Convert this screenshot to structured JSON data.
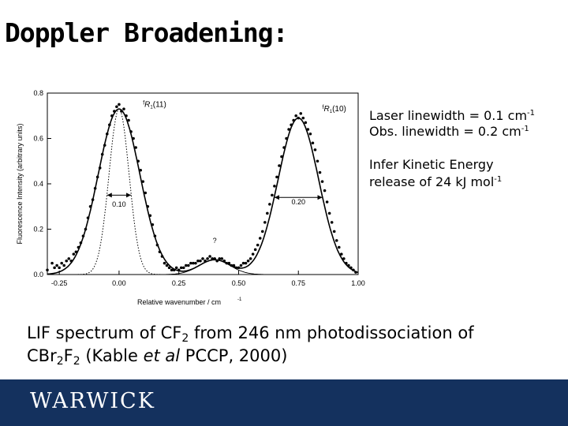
{
  "slide": {
    "title": "Doppler Broadening:",
    "notes": {
      "laser_prefix": "Laser linewidth = 0.1 cm",
      "laser_exp": "-1",
      "obs_prefix": "Obs. linewidth = 0.2 cm",
      "obs_exp": "-1",
      "infer_line1": "Infer Kinetic Energy",
      "infer_line2_prefix": "release of 24 kJ mol",
      "infer_exp": "-1"
    },
    "caption": {
      "p1": "LIF spectrum of CF",
      "s1": "2",
      "p2": " from 246 nm photodissociation of",
      "p3": "CBr",
      "s2": "2",
      "p4": "F",
      "s3": "2",
      "p5": " (Kable ",
      "italic": "et al",
      "p6": " PCCP, 2000)"
    },
    "footer_logo": "WARWICK"
  },
  "chart_data": {
    "type": "line",
    "xlabel": "Relative wavenumber / cm",
    "xlabel_exp": "-1",
    "ylabel": "Fluorescence Intensity (arbitrary units)",
    "xlim": [
      -0.3,
      1.0
    ],
    "ylim": [
      0.0,
      0.8
    ],
    "xticks": [
      -0.25,
      0.0,
      0.25,
      0.5,
      0.75,
      1.0
    ],
    "xtick_labels": [
      "-0.25",
      "0.00",
      "0.25",
      "0.50",
      "0.75",
      "1.00"
    ],
    "yticks": [
      0.0,
      0.2,
      0.4,
      0.6,
      0.8
    ],
    "ytick_labels": [
      "0.0",
      "0.2",
      "0.4",
      "0.6",
      "0.8"
    ],
    "annotations": [
      {
        "text": "0.10",
        "x": 0.0,
        "y": 0.3
      },
      {
        "text": "0.20",
        "x": 0.75,
        "y": 0.31
      },
      {
        "text": "?",
        "x": 0.4,
        "y": 0.14
      }
    ],
    "widths": [
      {
        "x1": -0.05,
        "x2": 0.05,
        "y": 0.35
      },
      {
        "x1": 0.65,
        "x2": 0.85,
        "y": 0.34
      }
    ],
    "peak_labels": [
      {
        "prefix": "f",
        "main": "R",
        "sub": "1",
        "arg": "(11)",
        "x": 0.1,
        "y": 0.74
      },
      {
        "prefix": "f",
        "main": "R",
        "sub": "1",
        "arg": "(10)",
        "x": 0.85,
        "y": 0.72
      }
    ],
    "series": [
      {
        "style": "fit",
        "peaks": [
          {
            "center": 0.0,
            "amp": 0.73,
            "sigma": 0.087
          },
          {
            "center": 0.4,
            "amp": 0.065,
            "sigma": 0.065
          },
          {
            "center": 0.75,
            "amp": 0.69,
            "sigma": 0.085
          }
        ],
        "baseline": 0.0
      },
      {
        "style": "laser-profile",
        "peaks": [
          {
            "center": 0.0,
            "amp": 0.73,
            "sigma": 0.042
          }
        ],
        "baseline": 0.0
      },
      {
        "style": "component-baseline",
        "peaks": [
          {
            "center": 0.4,
            "amp": 0.065,
            "sigma": 0.065
          }
        ],
        "baseline": 0.0
      }
    ],
    "points": [
      [
        -0.3,
        0.02
      ],
      [
        -0.28,
        0.05
      ],
      [
        -0.27,
        0.03
      ],
      [
        -0.26,
        0.04
      ],
      [
        -0.25,
        0.03
      ],
      [
        -0.24,
        0.05
      ],
      [
        -0.23,
        0.04
      ],
      [
        -0.22,
        0.06
      ],
      [
        -0.21,
        0.07
      ],
      [
        -0.2,
        0.06
      ],
      [
        -0.19,
        0.09
      ],
      [
        -0.18,
        0.1
      ],
      [
        -0.17,
        0.12
      ],
      [
        -0.16,
        0.14
      ],
      [
        -0.15,
        0.17
      ],
      [
        -0.14,
        0.2
      ],
      [
        -0.13,
        0.25
      ],
      [
        -0.12,
        0.3
      ],
      [
        -0.11,
        0.33
      ],
      [
        -0.1,
        0.38
      ],
      [
        -0.09,
        0.43
      ],
      [
        -0.08,
        0.47
      ],
      [
        -0.07,
        0.53
      ],
      [
        -0.06,
        0.57
      ],
      [
        -0.05,
        0.62
      ],
      [
        -0.04,
        0.66
      ],
      [
        -0.03,
        0.7
      ],
      [
        -0.02,
        0.72
      ],
      [
        -0.01,
        0.74
      ],
      [
        0.0,
        0.75
      ],
      [
        0.01,
        0.72
      ],
      [
        0.02,
        0.73
      ],
      [
        0.03,
        0.7
      ],
      [
        0.04,
        0.68
      ],
      [
        0.05,
        0.63
      ],
      [
        0.06,
        0.6
      ],
      [
        0.07,
        0.56
      ],
      [
        0.08,
        0.5
      ],
      [
        0.09,
        0.46
      ],
      [
        0.1,
        0.41
      ],
      [
        0.11,
        0.36
      ],
      [
        0.12,
        0.3
      ],
      [
        0.13,
        0.26
      ],
      [
        0.14,
        0.22
      ],
      [
        0.15,
        0.17
      ],
      [
        0.16,
        0.13
      ],
      [
        0.17,
        0.1
      ],
      [
        0.18,
        0.08
      ],
      [
        0.19,
        0.05
      ],
      [
        0.2,
        0.04
      ],
      [
        0.21,
        0.03
      ],
      [
        0.22,
        0.02
      ],
      [
        0.23,
        0.02
      ],
      [
        0.24,
        0.03
      ],
      [
        0.25,
        0.02
      ],
      [
        0.26,
        0.03
      ],
      [
        0.27,
        0.03
      ],
      [
        0.28,
        0.04
      ],
      [
        0.29,
        0.04
      ],
      [
        0.3,
        0.05
      ],
      [
        0.31,
        0.05
      ],
      [
        0.32,
        0.05
      ],
      [
        0.33,
        0.06
      ],
      [
        0.34,
        0.06
      ],
      [
        0.35,
        0.07
      ],
      [
        0.36,
        0.06
      ],
      [
        0.37,
        0.07
      ],
      [
        0.38,
        0.08
      ],
      [
        0.39,
        0.07
      ],
      [
        0.4,
        0.07
      ],
      [
        0.41,
        0.06
      ],
      [
        0.42,
        0.07
      ],
      [
        0.43,
        0.07
      ],
      [
        0.44,
        0.06
      ],
      [
        0.45,
        0.05
      ],
      [
        0.46,
        0.05
      ],
      [
        0.47,
        0.04
      ],
      [
        0.48,
        0.04
      ],
      [
        0.49,
        0.03
      ],
      [
        0.5,
        0.03
      ],
      [
        0.51,
        0.04
      ],
      [
        0.52,
        0.05
      ],
      [
        0.53,
        0.05
      ],
      [
        0.54,
        0.06
      ],
      [
        0.55,
        0.07
      ],
      [
        0.56,
        0.09
      ],
      [
        0.57,
        0.11
      ],
      [
        0.58,
        0.13
      ],
      [
        0.59,
        0.16
      ],
      [
        0.6,
        0.19
      ],
      [
        0.61,
        0.23
      ],
      [
        0.62,
        0.27
      ],
      [
        0.63,
        0.31
      ],
      [
        0.64,
        0.35
      ],
      [
        0.65,
        0.39
      ],
      [
        0.66,
        0.43
      ],
      [
        0.67,
        0.48
      ],
      [
        0.68,
        0.52
      ],
      [
        0.69,
        0.56
      ],
      [
        0.7,
        0.6
      ],
      [
        0.71,
        0.64
      ],
      [
        0.72,
        0.66
      ],
      [
        0.73,
        0.68
      ],
      [
        0.74,
        0.7
      ],
      [
        0.75,
        0.69
      ],
      [
        0.76,
        0.71
      ],
      [
        0.77,
        0.69
      ],
      [
        0.78,
        0.67
      ],
      [
        0.79,
        0.64
      ],
      [
        0.8,
        0.62
      ],
      [
        0.81,
        0.58
      ],
      [
        0.82,
        0.55
      ],
      [
        0.83,
        0.5
      ],
      [
        0.84,
        0.45
      ],
      [
        0.85,
        0.41
      ],
      [
        0.86,
        0.37
      ],
      [
        0.87,
        0.32
      ],
      [
        0.88,
        0.27
      ],
      [
        0.89,
        0.23
      ],
      [
        0.9,
        0.19
      ],
      [
        0.91,
        0.15
      ],
      [
        0.92,
        0.12
      ],
      [
        0.93,
        0.09
      ],
      [
        0.94,
        0.07
      ],
      [
        0.95,
        0.05
      ],
      [
        0.96,
        0.04
      ],
      [
        0.97,
        0.03
      ],
      [
        0.98,
        0.02
      ],
      [
        0.99,
        0.01
      ]
    ]
  }
}
